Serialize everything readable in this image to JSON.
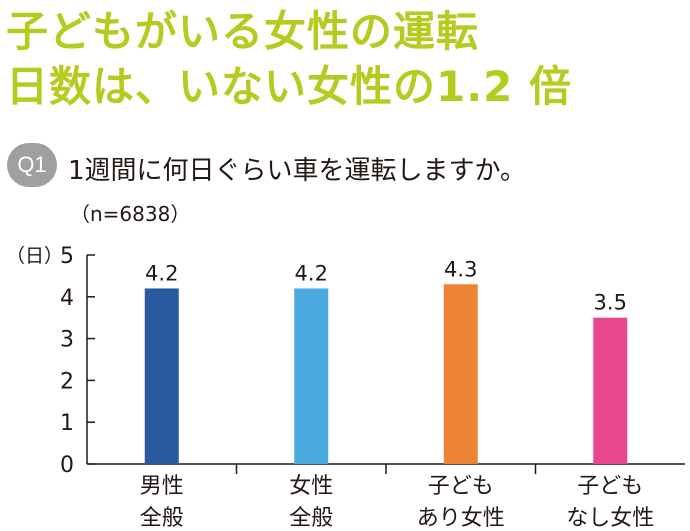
{
  "headline": {
    "line1": "子どもがいる女性の運転",
    "line2": "日数は、いない女性の1.2 倍",
    "color": "#b5cb1f"
  },
  "question": {
    "badge": "Q1",
    "badge_color": "#9fa0a0",
    "text": "1週間に何日ぐらい車を運転しますか。",
    "sample": "（n=6838）"
  },
  "chart_data": {
    "type": "bar",
    "unit_label": "（日）",
    "categories": [
      [
        "男性",
        "全般"
      ],
      [
        "女性",
        "全般"
      ],
      [
        "子ども",
        "あり女性"
      ],
      [
        "子ども",
        "なし女性"
      ]
    ],
    "values": [
      4.2,
      4.2,
      4.3,
      3.5
    ],
    "value_labels": [
      "4.2",
      "4.2",
      "4.3",
      "3.5"
    ],
    "colors": [
      "#2a5a9f",
      "#4aa9df",
      "#ed8435",
      "#e8478e"
    ],
    "ylim": [
      0,
      5
    ],
    "yticks": [
      0,
      1,
      2,
      3,
      4,
      5
    ],
    "grid": false
  }
}
